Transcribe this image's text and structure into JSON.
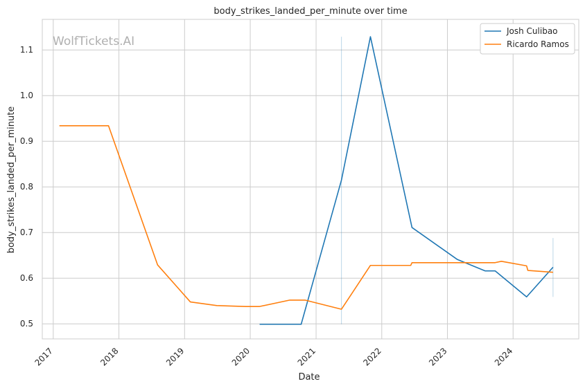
{
  "chart_data": {
    "type": "line",
    "title": "body_strikes_landed_per_minute over time",
    "xlabel": "Date",
    "ylabel": "body_strikes_landed_per_minute",
    "watermark": "WolfTickets.AI",
    "xlim": [
      "2016-11-01",
      "2024-12-31"
    ],
    "ylim": [
      0.467,
      1.167
    ],
    "x_ticks": [
      "2017",
      "2018",
      "2019",
      "2020",
      "2021",
      "2022",
      "2023",
      "2024"
    ],
    "x_tick_dates": [
      "2017-01-01",
      "2018-01-01",
      "2019-01-01",
      "2020-01-01",
      "2021-01-01",
      "2022-01-01",
      "2023-01-01",
      "2024-01-01"
    ],
    "y_ticks": [
      "0.5",
      "0.6",
      "0.7",
      "0.8",
      "0.9",
      "1.0",
      "1.1"
    ],
    "y_tick_values": [
      0.5,
      0.6,
      0.7,
      0.8,
      0.9,
      1.0,
      1.1
    ],
    "grid": true,
    "legend_position": "top-right",
    "series": [
      {
        "name": "Josh Culibao",
        "color": "#1f77b4",
        "points": [
          [
            "2020-02-22",
            0.499
          ],
          [
            "2020-10-10",
            0.499
          ],
          [
            "2021-05-22",
            0.815
          ],
          [
            "2021-10-30",
            1.129
          ],
          [
            "2022-06-18",
            0.711
          ],
          [
            "2023-02-25",
            0.641
          ],
          [
            "2023-07-29",
            0.616
          ],
          [
            "2023-09-23",
            0.616
          ],
          [
            "2024-03-16",
            0.559
          ],
          [
            "2024-08-10",
            0.624
          ]
        ],
        "bands": [
          {
            "x": "2021-05-22",
            "low": 0.499,
            "high": 1.129
          },
          {
            "x": "2024-08-10",
            "low": 0.559,
            "high": 0.688
          }
        ]
      },
      {
        "name": "Ricardo Ramos",
        "color": "#ff7f0e",
        "points": [
          [
            "2017-02-04",
            0.934
          ],
          [
            "2017-11-04",
            0.934
          ],
          [
            "2018-08-04",
            0.629
          ],
          [
            "2019-02-02",
            0.548
          ],
          [
            "2019-06-29",
            0.54
          ],
          [
            "2019-12-07",
            0.538
          ],
          [
            "2020-02-22",
            0.538
          ],
          [
            "2020-08-08",
            0.552
          ],
          [
            "2020-10-31",
            0.552
          ],
          [
            "2021-05-22",
            0.532
          ],
          [
            "2021-10-30",
            0.628
          ],
          [
            "2022-06-11",
            0.628
          ],
          [
            "2022-06-18",
            0.634
          ],
          [
            "2022-11-05",
            0.634
          ],
          [
            "2023-09-23",
            0.634
          ],
          [
            "2023-10-28",
            0.637
          ],
          [
            "2024-03-16",
            0.627
          ],
          [
            "2024-03-23",
            0.617
          ],
          [
            "2024-08-10",
            0.613
          ]
        ]
      }
    ]
  }
}
